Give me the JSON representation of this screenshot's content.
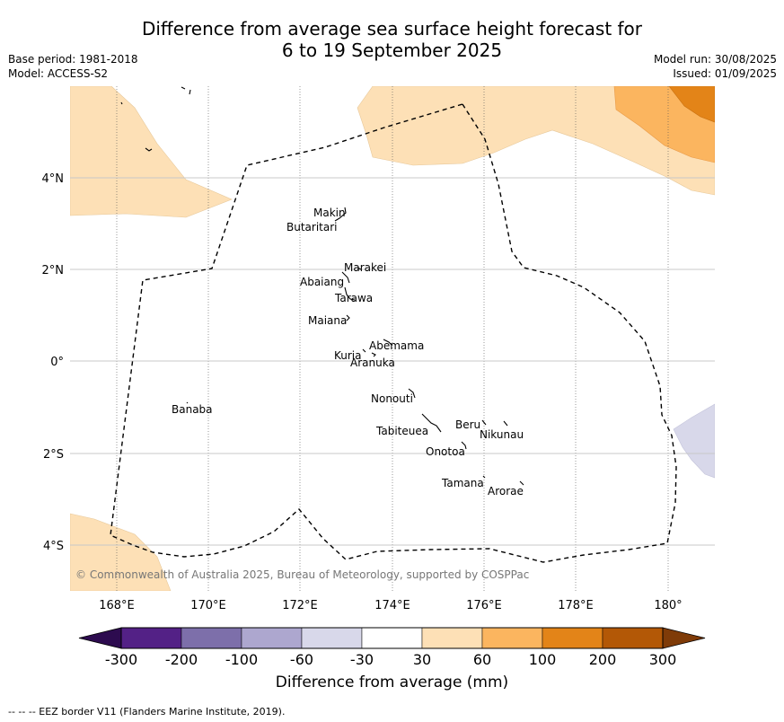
{
  "title": {
    "line1": "Difference from average sea surface height forecast for",
    "line2": "6 to 19 September 2025"
  },
  "meta_left": {
    "base_period": "Base period: 1981-2018",
    "model": "Model: ACCESS-S2"
  },
  "meta_right": {
    "model_run": "Model run: 30/08/2025",
    "issued": "Issued: 01/09/2025"
  },
  "map": {
    "x_ticks": [
      "168°E",
      "170°E",
      "172°E",
      "174°E",
      "176°E",
      "178°E",
      "180°"
    ],
    "y_ticks": [
      "4°N",
      "2°N",
      "0°",
      "2°S",
      "4°S"
    ],
    "copyright": "© Commonwealth of Australia 2025, Bureau of Meteorology, supported by COSPPac",
    "places": [
      {
        "name": "Makin"
      },
      {
        "name": "Butaritari"
      },
      {
        "name": "Marakei"
      },
      {
        "name": "Abaiang"
      },
      {
        "name": "Tarawa"
      },
      {
        "name": "Maiana"
      },
      {
        "name": "Abemama"
      },
      {
        "name": "Kuria"
      },
      {
        "name": "Aranuka"
      },
      {
        "name": "Banaba"
      },
      {
        "name": "Nonouti"
      },
      {
        "name": "Beru"
      },
      {
        "name": "Nikunau"
      },
      {
        "name": "Tabiteuea"
      },
      {
        "name": "Onotoa"
      },
      {
        "name": "Tamana"
      },
      {
        "name": "Arorae"
      }
    ]
  },
  "colorbar": {
    "ticks": [
      "-300",
      "-200",
      "-100",
      "-60",
      "-30",
      "30",
      "60",
      "100",
      "200",
      "300"
    ],
    "colors": [
      "#2d0b4f",
      "#532186",
      "#7d6faa",
      "#ada7cf",
      "#d8d8ea",
      "#ffffff",
      "#fde0b6",
      "#fbb55f",
      "#e38418",
      "#b35806",
      "#7f3b08"
    ],
    "label": "Difference from average (mm)"
  },
  "footnote": "--  --  -- EEZ border V11 (Flanders Marine Institute, 2019)."
}
